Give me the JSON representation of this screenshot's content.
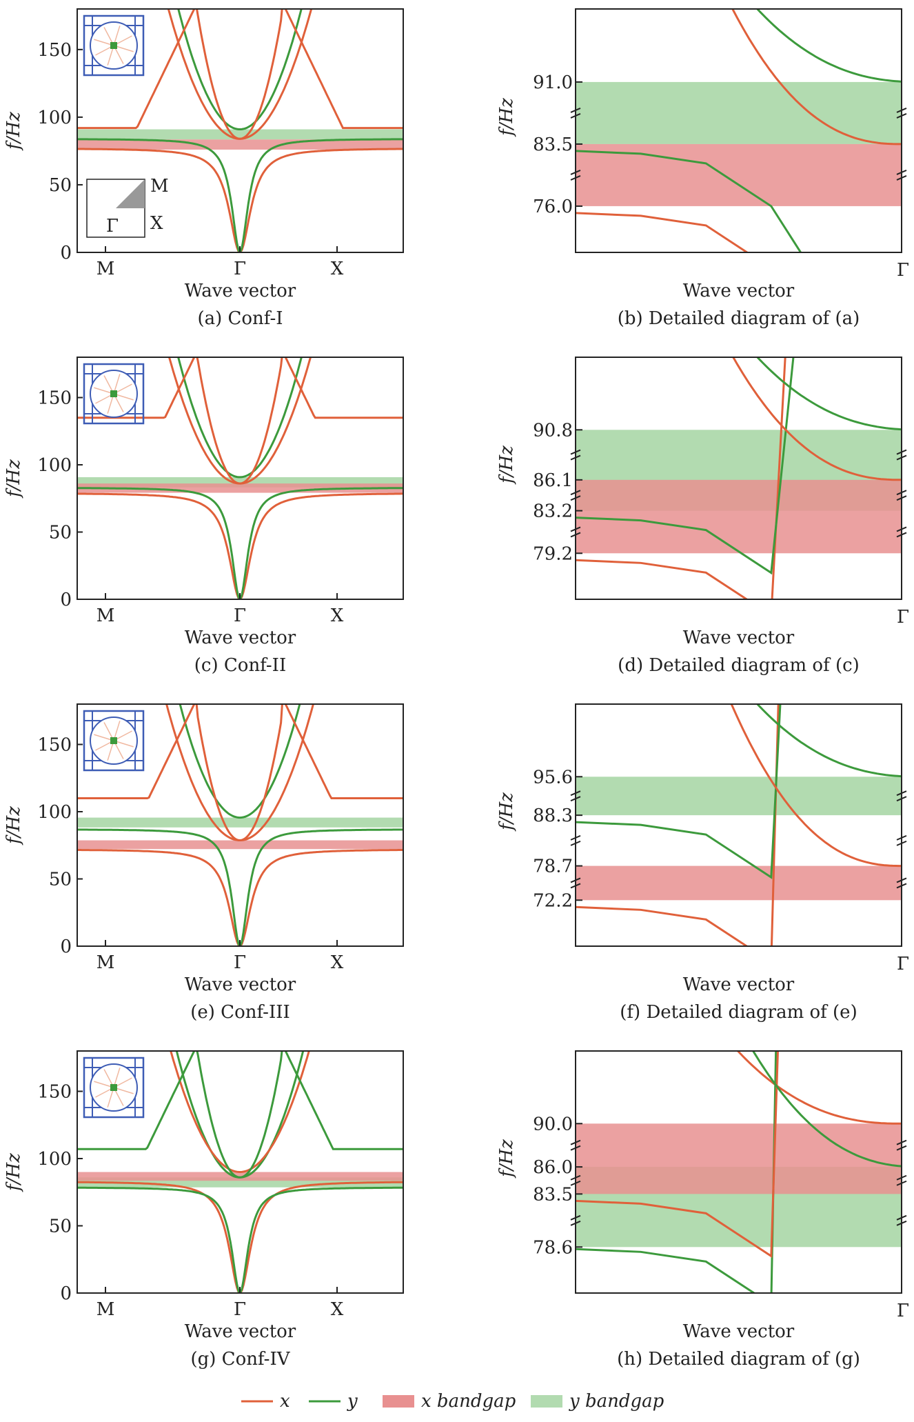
{
  "colors": {
    "x": "#e0603a",
    "y": "#3c9a3c",
    "x_gap": "#e89090",
    "y_gap": "#b2dbb0",
    "overlap": "#cc8c78",
    "cell": "#3d5cb5"
  },
  "legend": [
    {
      "key": "x",
      "label": "x"
    },
    {
      "key": "y",
      "label": "y"
    },
    {
      "key": "x_gap",
      "label": "x bandgap"
    },
    {
      "key": "y_gap",
      "label": "y bandgap"
    }
  ],
  "chart_data": [
    {
      "id": "a",
      "type": "line",
      "title": "(a) Conf-I",
      "xlabel": "Wave vector",
      "ylabel": "f/Hz",
      "ylim": [
        0,
        180
      ],
      "yticks": [
        "0",
        "50",
        "100",
        "150"
      ],
      "xticks": [
        "M",
        "Γ",
        "X"
      ],
      "bz_labels": [
        "M",
        "X",
        "Γ"
      ],
      "x_gap": [
        76,
        83.5
      ],
      "y_gap": [
        83.5,
        91
      ],
      "x_edge": 92,
      "y_edge": 84,
      "gamma_x": 84,
      "gamma_y": 91,
      "x_low": 77,
      "y_low": 84,
      "x_peak": 172
    },
    {
      "id": "b",
      "type": "line",
      "title": "(b) Detailed diagram of (a)",
      "xlabel": "Wave vector",
      "ylabel": "f/Hz",
      "xticks": [
        "Γ"
      ],
      "yticks": [
        "91.0",
        "83.5",
        "76.0"
      ],
      "x_gap": [
        76,
        83.5
      ],
      "y_gap": [
        83.5,
        91
      ]
    },
    {
      "id": "c",
      "type": "line",
      "title": "(c) Conf-II",
      "xlabel": "Wave vector",
      "ylabel": "f/Hz",
      "ylim": [
        0,
        180
      ],
      "yticks": [
        "0",
        "50",
        "100",
        "150"
      ],
      "xticks": [
        "M",
        "Γ",
        "X"
      ],
      "x_gap": [
        79.2,
        86.1
      ],
      "y_gap": [
        83.2,
        90.8
      ],
      "x_edge": 135,
      "gamma_x": 86.1,
      "gamma_y": 90.8,
      "x_low": 79,
      "y_low": 83
    },
    {
      "id": "d",
      "type": "line",
      "title": "(d) Detailed diagram of (c)",
      "xlabel": "Wave vector",
      "ylabel": "f/Hz",
      "xticks": [
        "Γ"
      ],
      "yticks": [
        "90.8",
        "86.1",
        "83.2",
        "79.2"
      ],
      "x_gap": [
        79.2,
        86.1
      ],
      "y_gap": [
        83.2,
        90.8
      ]
    },
    {
      "id": "e",
      "type": "line",
      "title": "(e) Conf-III",
      "xlabel": "Wave vector",
      "ylabel": "f/Hz",
      "ylim": [
        0,
        180
      ],
      "yticks": [
        "0",
        "50",
        "100",
        "150"
      ],
      "xticks": [
        "M",
        "Γ",
        "X"
      ],
      "x_gap": [
        72.2,
        78.7
      ],
      "y_gap": [
        88.3,
        95.6
      ],
      "x_edge": 110,
      "gamma_x": 78.7,
      "gamma_y": 95.6,
      "x_low": 72,
      "y_low": 87
    },
    {
      "id": "f",
      "type": "line",
      "title": "(f) Detailed diagram of (e)",
      "xlabel": "Wave vector",
      "ylabel": "f/Hz",
      "xticks": [
        "Γ"
      ],
      "yticks": [
        "95.6",
        "88.3",
        "78.7",
        "72.2"
      ],
      "x_gap": [
        72.2,
        78.7
      ],
      "y_gap": [
        88.3,
        95.6
      ]
    },
    {
      "id": "g",
      "type": "line",
      "title": "(g) Conf-IV",
      "xlabel": "Wave vector",
      "ylabel": "f/Hz",
      "ylim": [
        0,
        180
      ],
      "yticks": [
        "0",
        "50",
        "100",
        "150"
      ],
      "xticks": [
        "M",
        "Γ",
        "X"
      ],
      "x_gap": [
        83.5,
        90
      ],
      "y_gap": [
        78.6,
        86
      ],
      "y_edge_hi": 107,
      "gamma_x": 90,
      "gamma_y": 86,
      "x_low": 83,
      "y_low": 78.6
    },
    {
      "id": "h",
      "type": "line",
      "title": "(h) Detailed diagram of (g)",
      "xlabel": "Wave vector",
      "ylabel": "f/Hz",
      "xticks": [
        "Γ"
      ],
      "yticks": [
        "90.0",
        "86.0",
        "83.5",
        "78.6"
      ],
      "x_gap": [
        83.5,
        90
      ],
      "y_gap": [
        78.6,
        86
      ]
    }
  ]
}
